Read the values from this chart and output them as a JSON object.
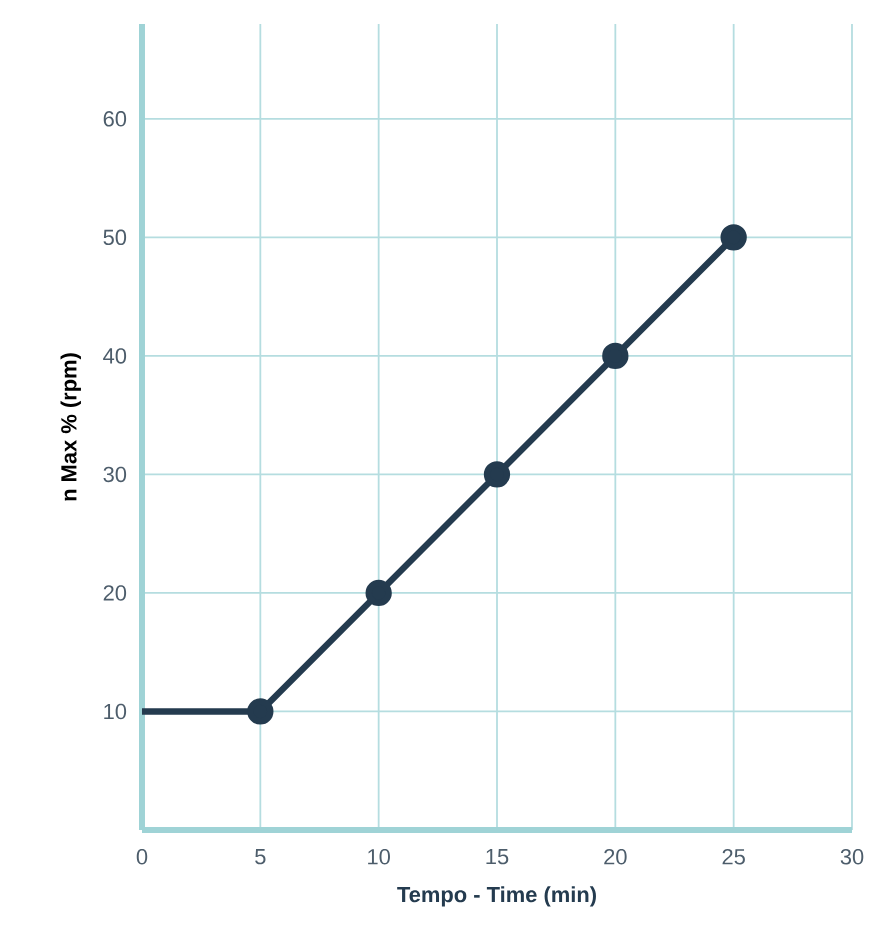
{
  "chart_data": {
    "type": "line",
    "xlabel": "Tempo - Time (min)",
    "ylabel": "n Max % (rpm)",
    "x": [
      0,
      5,
      10,
      15,
      20,
      25
    ],
    "series": [
      {
        "color": "#243b4f",
        "values": [
          10,
          10,
          20,
          30,
          40,
          50
        ]
      }
    ],
    "xlim": [
      0,
      30
    ],
    "ylim": [
      0,
      68
    ],
    "xticks": [
      0,
      5,
      10,
      15,
      20,
      25,
      30
    ],
    "yticks": [
      10,
      20,
      30,
      40,
      50,
      60
    ],
    "grid": true,
    "marker": "circle",
    "line_style": "solid"
  }
}
